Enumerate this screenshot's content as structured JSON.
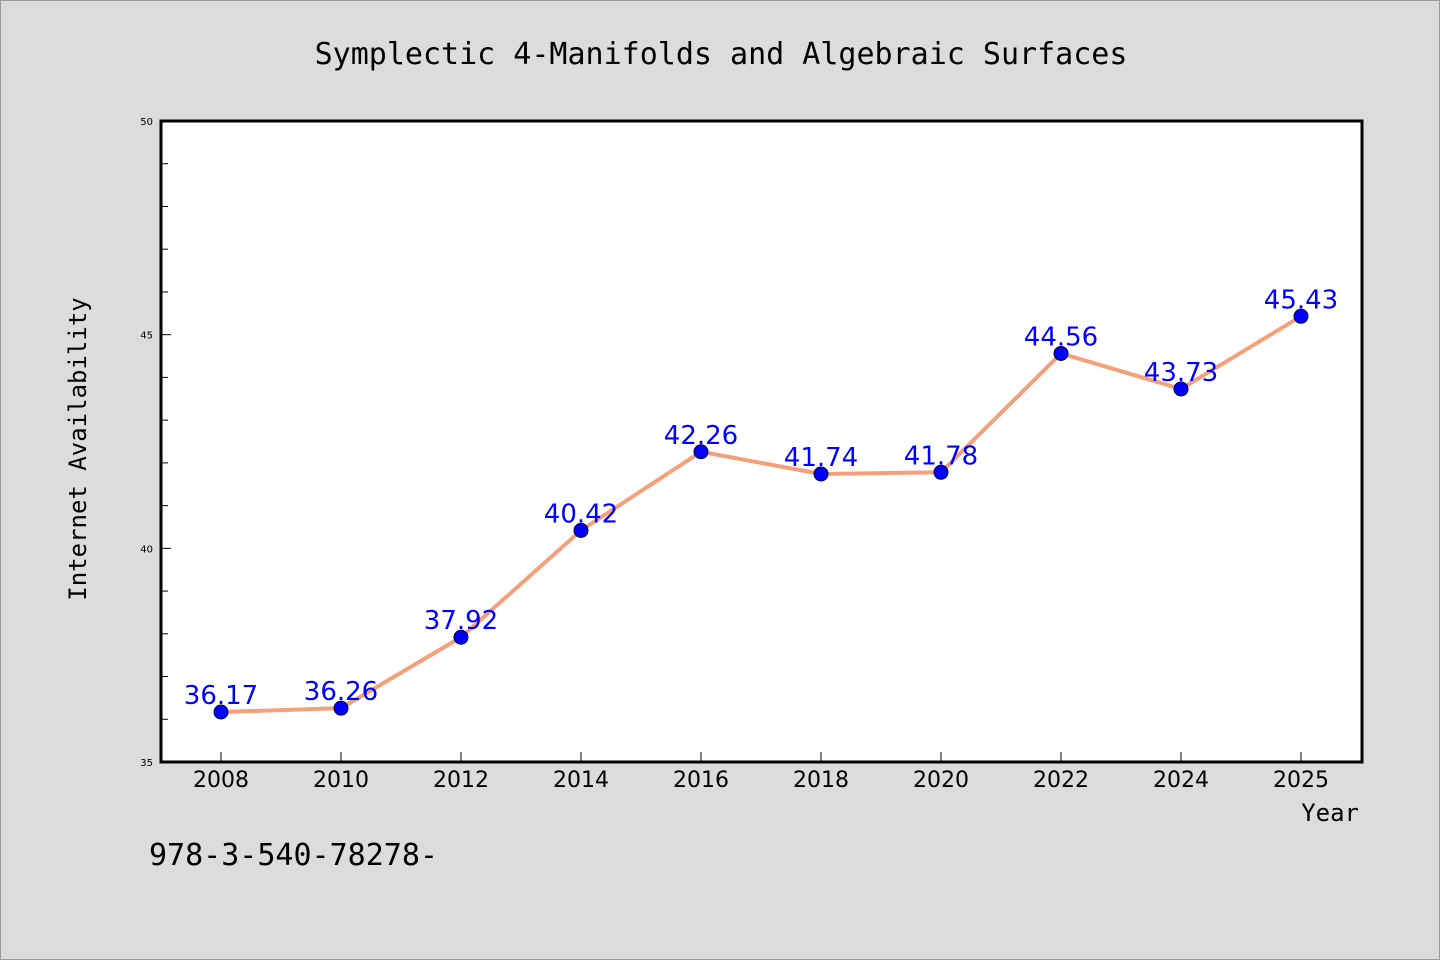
{
  "chart_data": {
    "type": "line",
    "title": "Symplectic 4-Manifolds and Algebraic Surfaces",
    "xlabel": "Year",
    "ylabel": "Internet Availability",
    "x": [
      "2008",
      "2010",
      "2012",
      "2014",
      "2016",
      "2018",
      "2020",
      "2022",
      "2024",
      "2025"
    ],
    "values": [
      36.17,
      36.26,
      37.92,
      40.42,
      42.26,
      41.74,
      41.78,
      44.56,
      43.73,
      45.43
    ],
    "data_labels": [
      "36.17",
      "36.26",
      "37.92",
      "40.42",
      "42.26",
      "41.74",
      "41.78",
      "44.56",
      "43.73",
      "45.43"
    ],
    "ylim": [
      35,
      50
    ],
    "yticks": [
      35,
      40,
      45,
      50
    ],
    "grid": false,
    "legend": "none",
    "colors": {
      "line": "#f4a07a",
      "marker": "#0000ff",
      "label": "#0000ff",
      "background": "#dcdcdc",
      "plot_background": "#ffffff"
    }
  },
  "footnote": "978-3-540-78278-"
}
